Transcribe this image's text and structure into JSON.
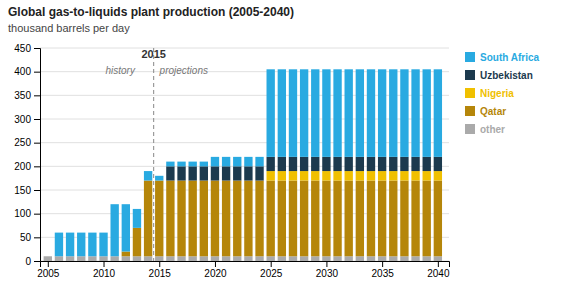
{
  "chart_data": {
    "type": "bar",
    "stacked": true,
    "title": "Global gas-to-liquids plant production (2005-2040)",
    "subtitle": "thousand barrels per day",
    "x": [
      2005,
      2006,
      2007,
      2008,
      2009,
      2010,
      2011,
      2012,
      2013,
      2014,
      2015,
      2016,
      2017,
      2018,
      2019,
      2020,
      2021,
      2022,
      2023,
      2024,
      2025,
      2026,
      2027,
      2028,
      2029,
      2030,
      2031,
      2032,
      2033,
      2034,
      2035,
      2036,
      2037,
      2038,
      2039,
      2040
    ],
    "series": [
      {
        "name": "other",
        "color": "#aaaaaa",
        "values": [
          10,
          10,
          10,
          10,
          10,
          10,
          10,
          10,
          10,
          10,
          10,
          10,
          10,
          10,
          10,
          10,
          10,
          10,
          10,
          10,
          10,
          10,
          10,
          10,
          10,
          10,
          10,
          10,
          10,
          10,
          10,
          10,
          10,
          10,
          10,
          10
        ]
      },
      {
        "name": "Qatar",
        "color": "#b5860a",
        "values": [
          0,
          0,
          0,
          0,
          0,
          0,
          0,
          10,
          60,
          160,
          160,
          160,
          160,
          160,
          160,
          160,
          160,
          160,
          160,
          160,
          160,
          160,
          160,
          160,
          160,
          160,
          160,
          160,
          160,
          160,
          160,
          160,
          160,
          160,
          160,
          160
        ]
      },
      {
        "name": "Nigeria",
        "color": "#f0c000",
        "values": [
          0,
          0,
          0,
          0,
          0,
          0,
          0,
          0,
          0,
          0,
          0,
          0,
          0,
          0,
          0,
          0,
          0,
          0,
          0,
          0,
          20,
          20,
          20,
          20,
          20,
          20,
          20,
          20,
          20,
          20,
          20,
          20,
          20,
          20,
          20,
          20
        ]
      },
      {
        "name": "Uzbekistan",
        "color": "#1c3a4e",
        "values": [
          0,
          0,
          0,
          0,
          0,
          0,
          0,
          0,
          0,
          0,
          0,
          30,
          30,
          30,
          30,
          30,
          30,
          30,
          30,
          30,
          30,
          30,
          30,
          30,
          30,
          30,
          30,
          30,
          30,
          30,
          30,
          30,
          30,
          30,
          30,
          30
        ]
      },
      {
        "name": "South Africa",
        "color": "#29aae1",
        "values": [
          0,
          50,
          50,
          50,
          50,
          50,
          110,
          100,
          40,
          20,
          10,
          10,
          10,
          10,
          10,
          20,
          20,
          20,
          20,
          20,
          185,
          185,
          185,
          185,
          185,
          185,
          185,
          185,
          185,
          185,
          185,
          185,
          185,
          185,
          185,
          185
        ]
      }
    ],
    "xlim": [
      2004.3,
      2041
    ],
    "xticks": [
      2005,
      2010,
      2015,
      2020,
      2025,
      2030,
      2035,
      2040
    ],
    "ylim": [
      0,
      450
    ],
    "yticks": [
      0,
      50,
      100,
      150,
      200,
      250,
      300,
      350,
      400,
      450
    ],
    "grid": true,
    "annotations": [
      {
        "text": "2015",
        "x": 2014.5,
        "y": 428,
        "line_style": "dashed",
        "color": "#888888"
      },
      {
        "text": "history",
        "x": 2011.5,
        "y": 415
      },
      {
        "text": "projections",
        "x": 2017.2,
        "y": 415
      }
    ]
  }
}
